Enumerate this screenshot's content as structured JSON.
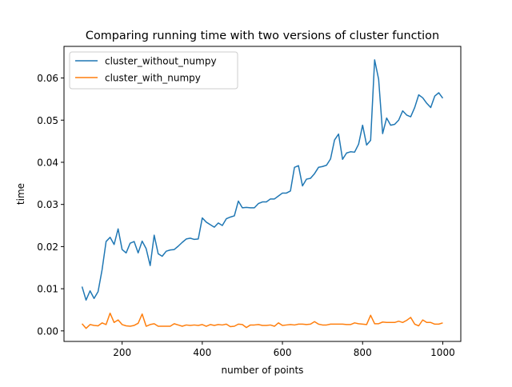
{
  "chart_data": {
    "type": "line",
    "title": "Comparing running time with two versions of cluster function",
    "xlabel": "number of points",
    "ylabel": "time",
    "xlim": [
      55,
      1045
    ],
    "ylim": [
      -0.0025,
      0.0675
    ],
    "x_ticks": [
      {
        "value": 200,
        "label": "200"
      },
      {
        "value": 400,
        "label": "400"
      },
      {
        "value": 600,
        "label": "600"
      },
      {
        "value": 800,
        "label": "800"
      },
      {
        "value": 1000,
        "label": "1000"
      }
    ],
    "y_ticks": [
      {
        "value": 0.0,
        "label": "0.00"
      },
      {
        "value": 0.01,
        "label": "0.01"
      },
      {
        "value": 0.02,
        "label": "0.02"
      },
      {
        "value": 0.03,
        "label": "0.03"
      },
      {
        "value": 0.04,
        "label": "0.04"
      },
      {
        "value": 0.05,
        "label": "0.05"
      },
      {
        "value": 0.06,
        "label": "0.06"
      }
    ],
    "grid": false,
    "legend_position": "top-left",
    "x": [
      100,
      110,
      120,
      130,
      140,
      150,
      160,
      170,
      180,
      190,
      200,
      210,
      220,
      230,
      240,
      250,
      260,
      270,
      280,
      290,
      300,
      310,
      320,
      330,
      340,
      350,
      360,
      370,
      380,
      390,
      400,
      410,
      420,
      430,
      440,
      450,
      460,
      470,
      480,
      490,
      500,
      510,
      520,
      530,
      540,
      550,
      560,
      570,
      580,
      590,
      600,
      610,
      620,
      630,
      640,
      650,
      660,
      670,
      680,
      690,
      700,
      710,
      720,
      730,
      740,
      750,
      760,
      770,
      780,
      790,
      800,
      810,
      820,
      830,
      840,
      850,
      860,
      870,
      880,
      890,
      900,
      910,
      920,
      930,
      940,
      950,
      960,
      970,
      980,
      990,
      1000
    ],
    "series": [
      {
        "name": "cluster_without_numpy",
        "color": "#1f77b4",
        "values": [
          0.0105,
          0.0073,
          0.0095,
          0.0077,
          0.0093,
          0.0145,
          0.0212,
          0.0222,
          0.0205,
          0.0242,
          0.0193,
          0.0185,
          0.0208,
          0.0212,
          0.0185,
          0.0213,
          0.0195,
          0.0155,
          0.0227,
          0.0183,
          0.0177,
          0.0189,
          0.0192,
          0.0193,
          0.0201,
          0.021,
          0.0218,
          0.022,
          0.0217,
          0.0218,
          0.0268,
          0.0258,
          0.0252,
          0.0246,
          0.0256,
          0.025,
          0.0266,
          0.027,
          0.0273,
          0.0308,
          0.0292,
          0.0293,
          0.0292,
          0.0292,
          0.0302,
          0.0306,
          0.0306,
          0.0313,
          0.0313,
          0.032,
          0.0327,
          0.0327,
          0.0332,
          0.0388,
          0.0392,
          0.0344,
          0.036,
          0.0362,
          0.0373,
          0.0388,
          0.039,
          0.0393,
          0.0408,
          0.0453,
          0.0467,
          0.0407,
          0.0422,
          0.0425,
          0.0424,
          0.0443,
          0.0488,
          0.0441,
          0.0452,
          0.0643,
          0.0597,
          0.0468,
          0.0505,
          0.0488,
          0.049,
          0.05,
          0.0522,
          0.0512,
          0.0508,
          0.053,
          0.056,
          0.0553,
          0.054,
          0.053,
          0.0557,
          0.0565,
          0.0552
        ]
      },
      {
        "name": "cluster_with_numpy",
        "color": "#ff7f0e",
        "values": [
          0.0017,
          0.0006,
          0.0015,
          0.0013,
          0.0012,
          0.0019,
          0.0015,
          0.0042,
          0.002,
          0.0026,
          0.0015,
          0.0012,
          0.0011,
          0.0013,
          0.0018,
          0.004,
          0.0011,
          0.0015,
          0.0017,
          0.0011,
          0.0011,
          0.0011,
          0.0011,
          0.0017,
          0.0014,
          0.0011,
          0.0014,
          0.0013,
          0.0014,
          0.0013,
          0.0015,
          0.0011,
          0.0015,
          0.0013,
          0.0015,
          0.0014,
          0.0016,
          0.001,
          0.0011,
          0.0016,
          0.0015,
          0.0008,
          0.0014,
          0.0014,
          0.0015,
          0.0013,
          0.0013,
          0.0014,
          0.0011,
          0.0019,
          0.0013,
          0.0014,
          0.0015,
          0.0014,
          0.0016,
          0.0016,
          0.0015,
          0.0016,
          0.0022,
          0.0016,
          0.0014,
          0.0014,
          0.0016,
          0.0016,
          0.0016,
          0.0016,
          0.0015,
          0.0015,
          0.0019,
          0.0017,
          0.0016,
          0.0015,
          0.0037,
          0.0017,
          0.0017,
          0.0021,
          0.002,
          0.002,
          0.002,
          0.0023,
          0.002,
          0.0025,
          0.0032,
          0.0016,
          0.0012,
          0.0026,
          0.002,
          0.002,
          0.0016,
          0.0016,
          0.0019
        ]
      }
    ]
  }
}
